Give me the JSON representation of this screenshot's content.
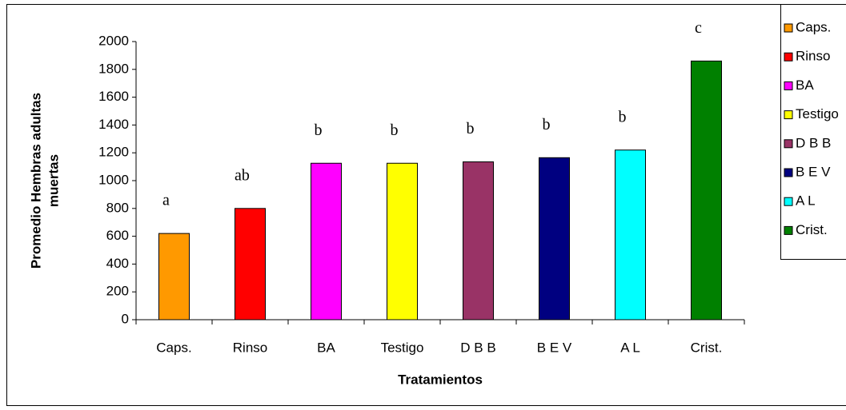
{
  "chart_data": {
    "type": "bar",
    "ylabel": [
      "Promedio Hembras adultas",
      "muertas"
    ],
    "xlabel": "Tratamientos",
    "categories": [
      "Caps.",
      "Rinso",
      "BA",
      "Testigo",
      "D B B",
      "B E V",
      "A L",
      "Crist."
    ],
    "values": [
      620,
      800,
      1125,
      1125,
      1135,
      1165,
      1220,
      1860
    ],
    "colors": [
      "#FF9900",
      "#FF0000",
      "#FF00FF",
      "#FFFF00",
      "#993366",
      "#000080",
      "#00FFFF",
      "#008000"
    ],
    "annotations": [
      "a",
      "ab",
      "b",
      "b",
      "b",
      "b",
      "b",
      "c"
    ],
    "ylim": [
      0,
      2000
    ],
    "yticks": [
      0,
      200,
      400,
      600,
      800,
      1000,
      1200,
      1400,
      1600,
      1800,
      2000
    ],
    "grid": false,
    "legend": "right"
  }
}
